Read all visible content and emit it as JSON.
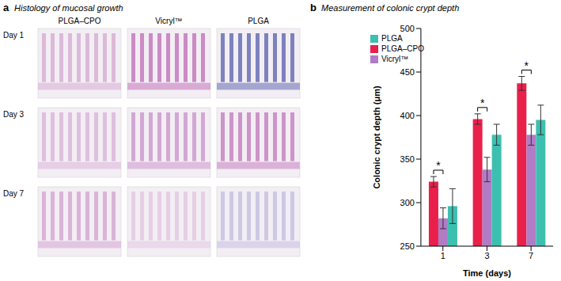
{
  "histology": {
    "label": "a",
    "title": "Histology of mucosal growth",
    "columns": [
      "PLGA–CPO",
      "Vicryl™",
      "PLGA"
    ],
    "rows": [
      "Day 1",
      "Day 3",
      "Day 7"
    ]
  },
  "chart_data": {
    "type": "bar",
    "label": "b",
    "title": "Measurement of colonic crypt depth",
    "x_label": "Time (days)",
    "y_label": "Colonic crypt depth (μm)",
    "categories": [
      "1",
      "3",
      "7"
    ],
    "series": [
      {
        "name": "PLGA–CPO",
        "color": "#e8204a",
        "values": [
          324,
          396,
          437
        ],
        "errors": [
          6,
          6,
          8
        ]
      },
      {
        "name": "Vicryl™",
        "color": "#b07cc6",
        "values": [
          282,
          338,
          378
        ],
        "errors": [
          12,
          14,
          12
        ]
      },
      {
        "name": "PLGA",
        "color": "#3dbfb0",
        "values": [
          296,
          378,
          395
        ],
        "errors": [
          20,
          12,
          17
        ]
      }
    ],
    "ylim": [
      250,
      500
    ],
    "yticks": [
      250,
      300,
      350,
      400,
      450,
      500
    ],
    "legend": "upper left",
    "annotations": [
      {
        "category": "1",
        "text": "*"
      },
      {
        "category": "3",
        "text": "*"
      },
      {
        "category": "7",
        "text": "*"
      }
    ]
  }
}
